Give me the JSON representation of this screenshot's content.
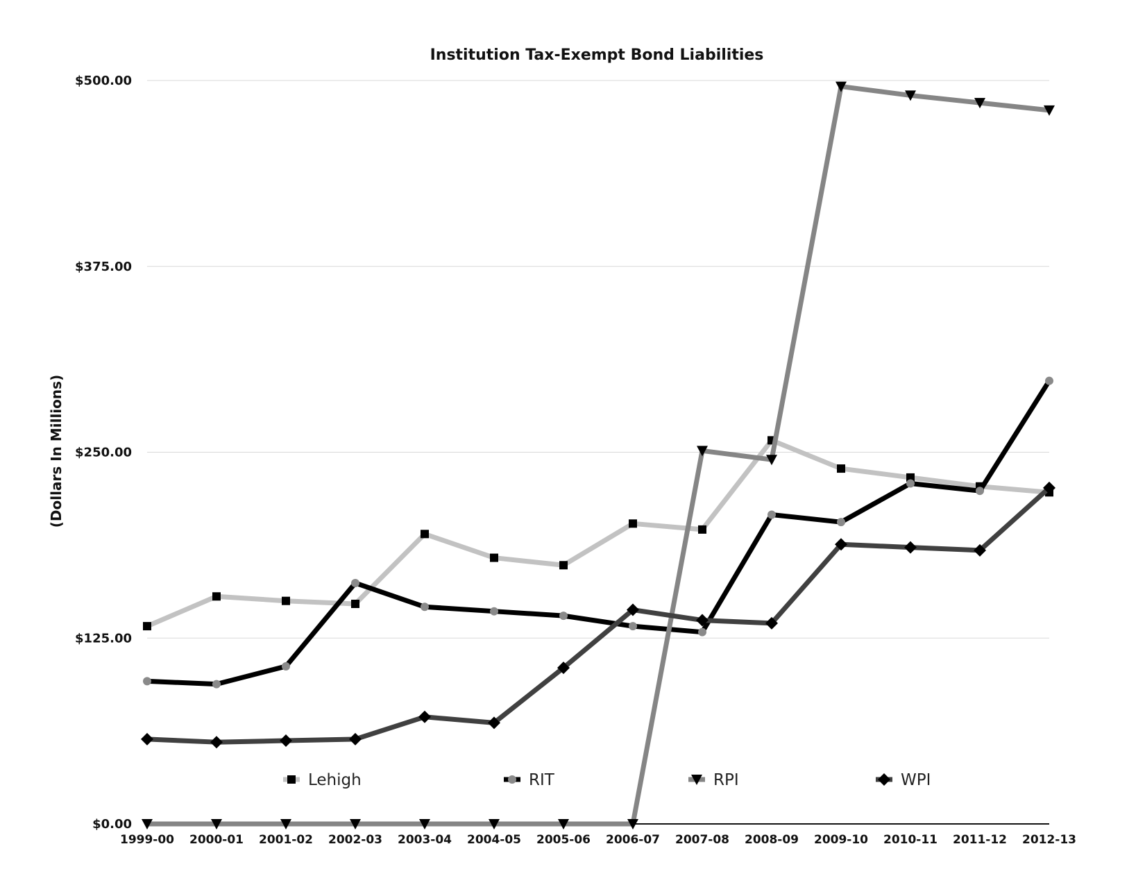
{
  "chart_data": {
    "type": "line",
    "title": "Institution Tax-Exempt Bond Liabilities",
    "xlabel": "",
    "ylabel": "(Dollars In Millions)",
    "ylim": [
      0,
      500
    ],
    "yticks": [
      0,
      125,
      250,
      375,
      500
    ],
    "ytick_labels": [
      "$0.00",
      "$125.00",
      "$250.00",
      "$375.00",
      "$500.00"
    ],
    "grid": true,
    "legend_position": "bottom-inside",
    "categories": [
      "1999-00",
      "2000-01",
      "2001-02",
      "2002-03",
      "2003-04",
      "2004-05",
      "2005-06",
      "2006-07",
      "2007-08",
      "2008-09",
      "2009-10",
      "2010-11",
      "2011-12",
      "2012-13"
    ],
    "series": [
      {
        "name": "Lehigh",
        "marker": "square",
        "color": "#c2c2c2",
        "values": [
          133,
          153,
          150,
          148,
          195,
          179,
          174,
          202,
          198,
          258,
          239,
          233,
          227,
          223
        ]
      },
      {
        "name": "RIT",
        "marker": "circle",
        "color": "#000000",
        "values": [
          96,
          94,
          106,
          162,
          146,
          143,
          140,
          133,
          129,
          208,
          203,
          229,
          224,
          298
        ]
      },
      {
        "name": "RPI",
        "marker": "triangle-down",
        "color": "#858585",
        "values": [
          0,
          0,
          0,
          0,
          0,
          0,
          0,
          0,
          251,
          245,
          496,
          490,
          485,
          480
        ]
      },
      {
        "name": "WPI",
        "marker": "diamond",
        "color": "#404040",
        "values": [
          57,
          55,
          56,
          57,
          72,
          68,
          105,
          144,
          137,
          135,
          188,
          186,
          184,
          226
        ]
      }
    ]
  }
}
